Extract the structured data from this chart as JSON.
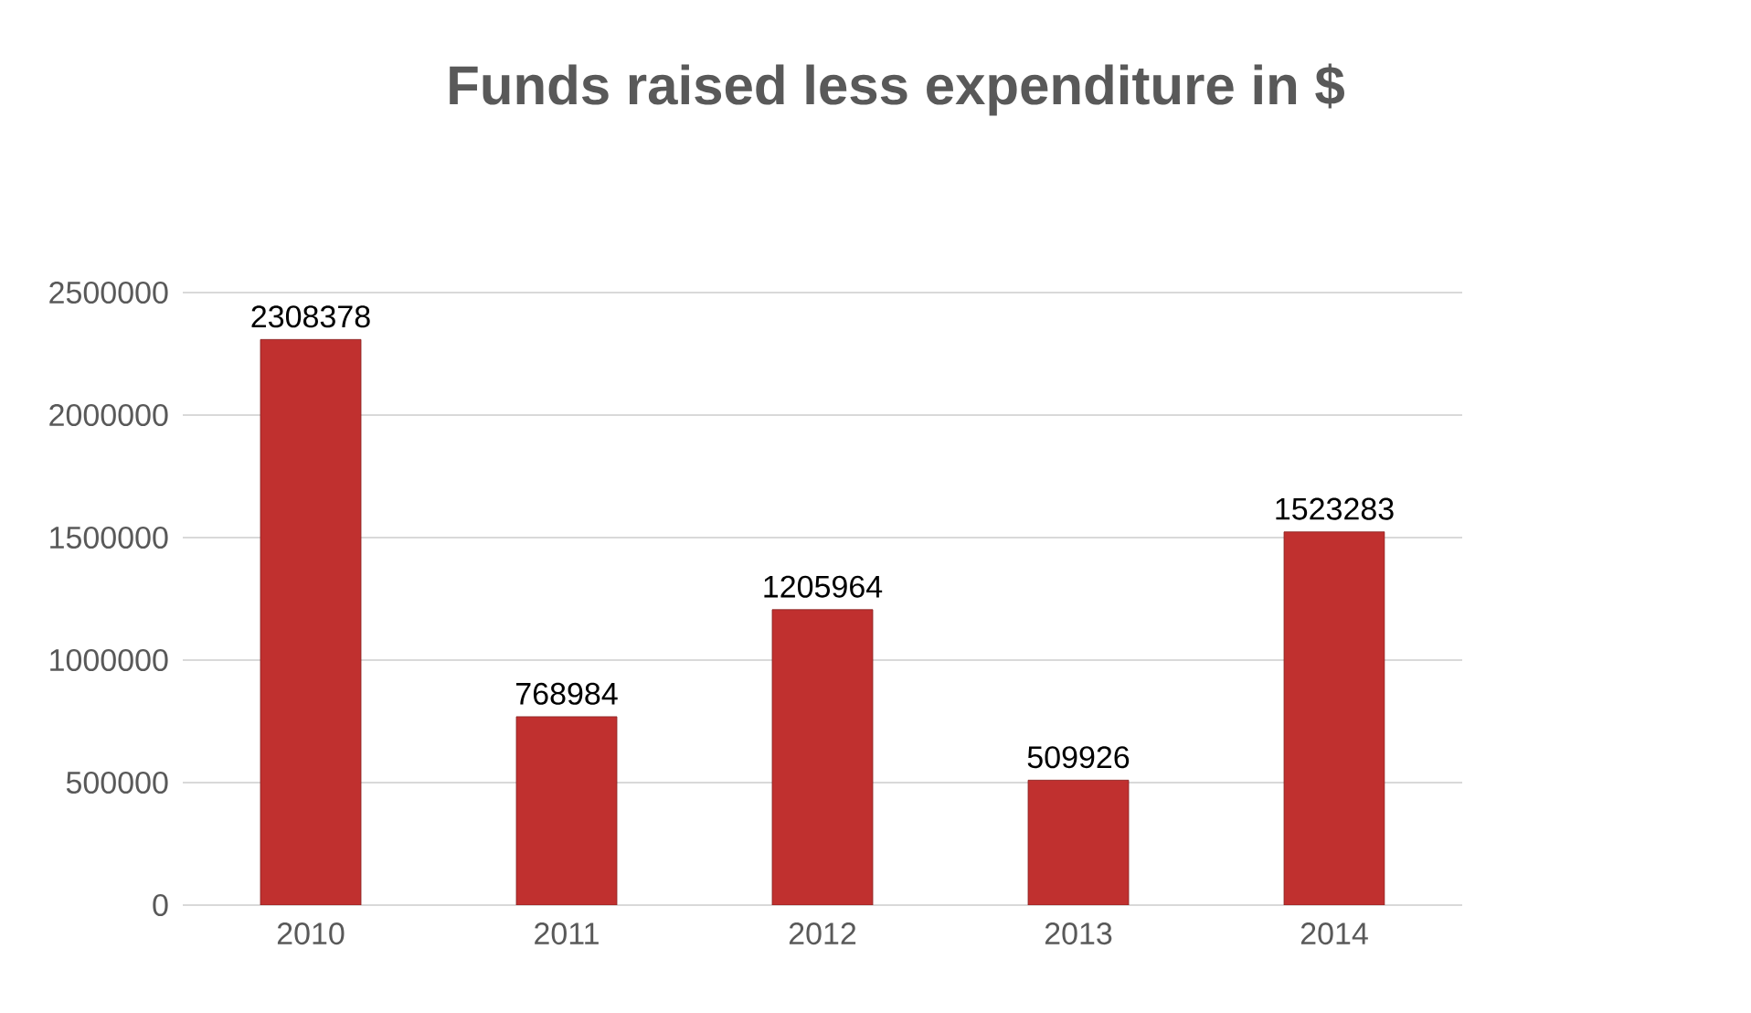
{
  "chart_data": {
    "type": "bar",
    "title": "Funds raised less expenditure in $",
    "categories": [
      "2010",
      "2011",
      "2012",
      "2013",
      "2014"
    ],
    "values": [
      2308378,
      768984,
      1205964,
      509926,
      1523283
    ],
    "color": "#c0302f",
    "ylim": [
      0,
      2500000
    ],
    "yticks": [
      0,
      500000,
      1000000,
      1500000,
      2000000,
      2500000
    ],
    "grid": "y",
    "data_labels": true
  }
}
